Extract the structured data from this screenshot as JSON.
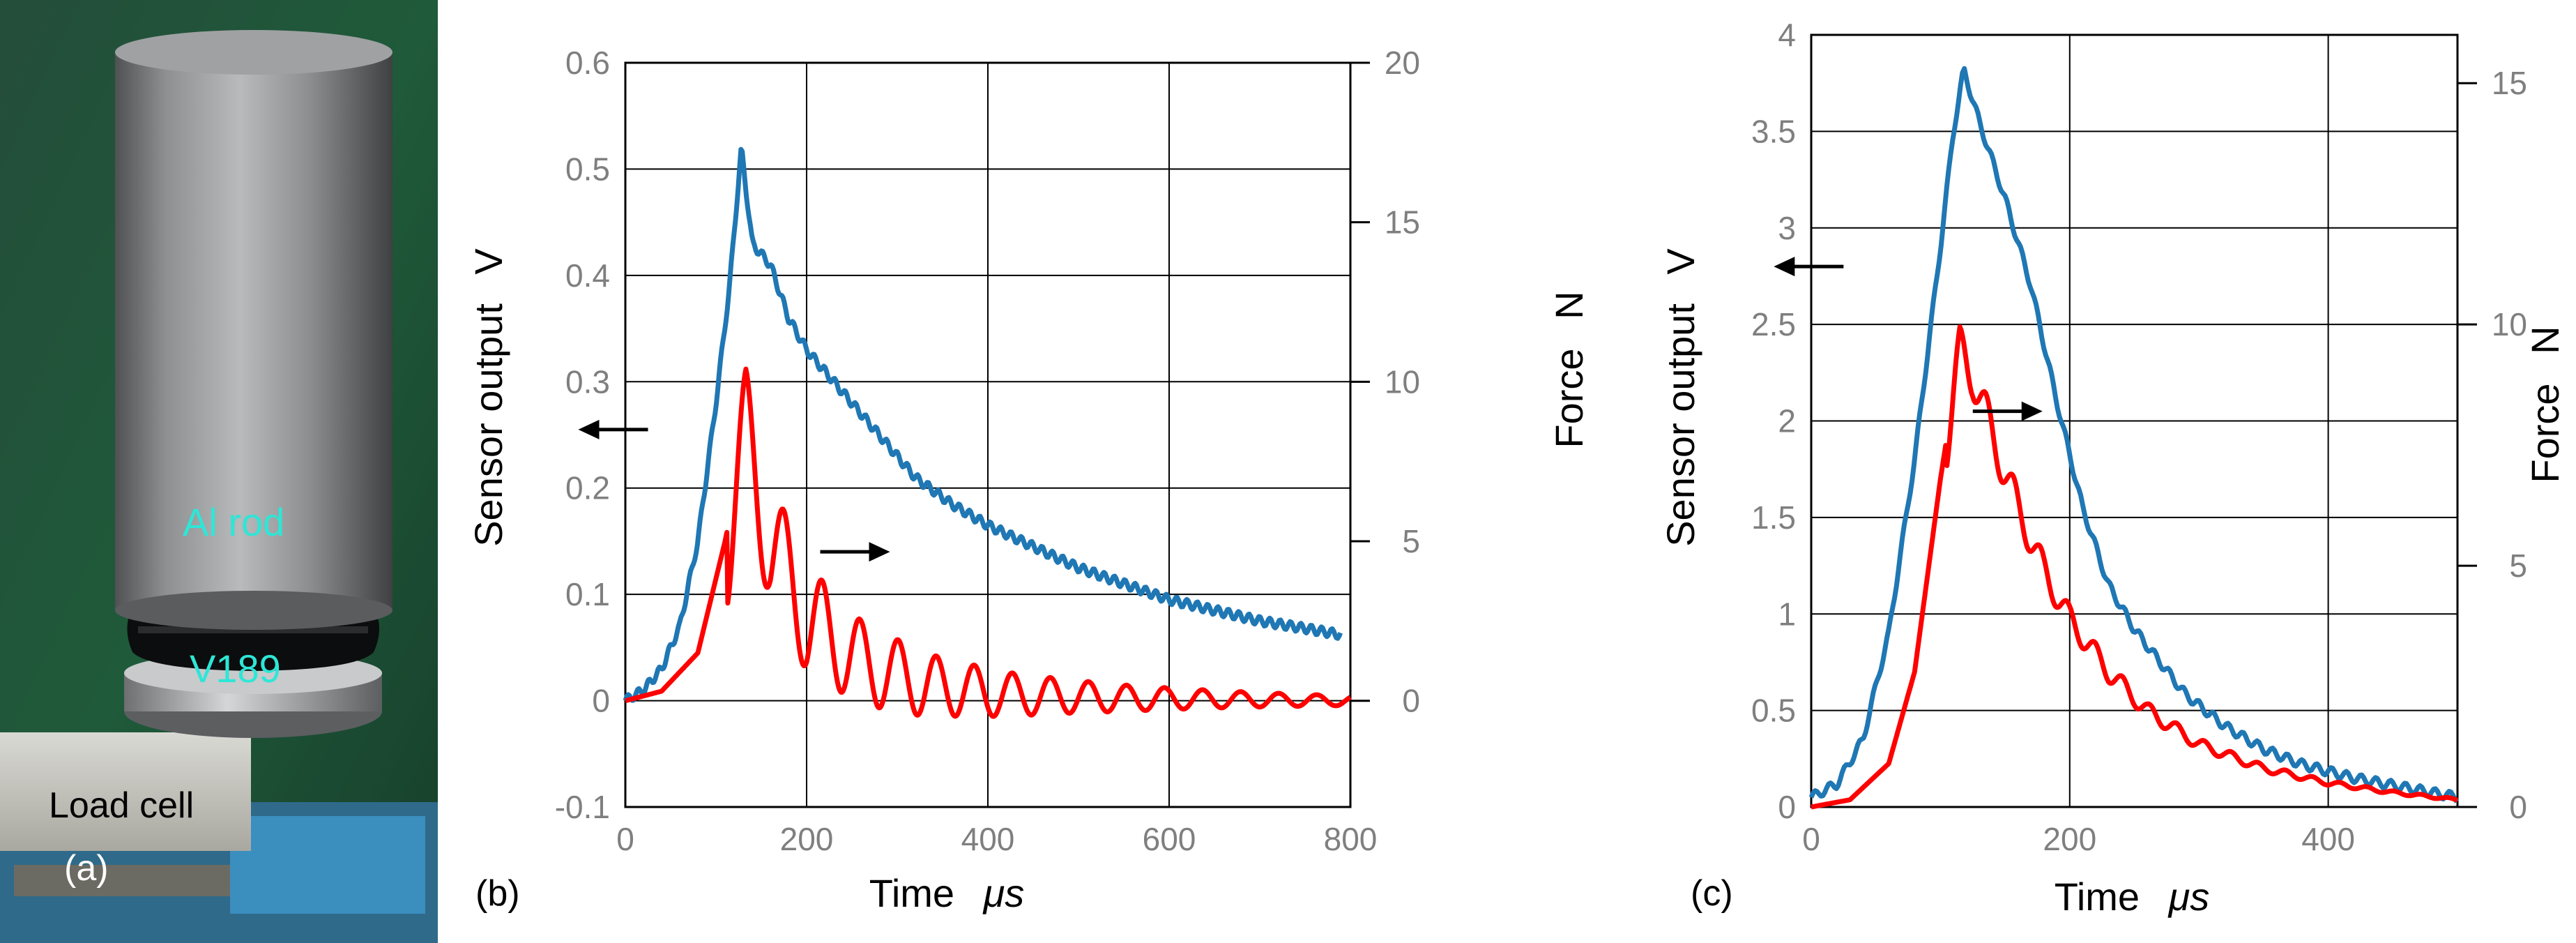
{
  "photo": {
    "panel_label": "(a)",
    "labels": {
      "rod": "Al rod",
      "sensor": "V189",
      "load_cell": "Load cell"
    },
    "colors": {
      "background": "#1f5a3a",
      "label_accent": "#2ee6d6",
      "rod": "#8a8c8e"
    }
  },
  "colors": {
    "sensor": "#1f77b4",
    "force": "#ff0000",
    "grid": "#000000",
    "tick": "#7f7f7f"
  },
  "chart_data": [
    {
      "id": "b",
      "type": "line",
      "panel_label": "(b)",
      "xlabel": "Time",
      "xlabel_unit": "μs",
      "ylabel": "Sensor output",
      "ylabel_unit": "V",
      "y2label": "Force",
      "y2label_unit": "N",
      "xlim": [
        0,
        800
      ],
      "ylim": [
        -0.1,
        0.6
      ],
      "y2lim": [
        -3.33,
        20
      ],
      "xticks": [
        0,
        200,
        400,
        600,
        800
      ],
      "yticks": [
        -0.1,
        0,
        0.1,
        0.2,
        0.3,
        0.4,
        0.5,
        0.6
      ],
      "y2ticks": [
        0,
        5,
        10,
        15,
        20
      ],
      "grid": true,
      "arrows": [
        {
          "series": "Sensor output",
          "direction": "left",
          "x": 25,
          "y": 0.255
        },
        {
          "series": "Force",
          "direction": "right",
          "x": 215,
          "y": 0.14
        }
      ],
      "series": [
        {
          "name": "Sensor output",
          "axis": "left",
          "x": [
            0,
            20,
            40,
            60,
            80,
            100,
            115,
            128,
            140,
            160,
            180,
            200,
            240,
            280,
            320,
            360,
            400,
            450,
            500,
            550,
            600,
            650,
            700,
            750,
            790
          ],
          "y": [
            0,
            0.01,
            0.03,
            0.07,
            0.15,
            0.28,
            0.39,
            0.52,
            0.43,
            0.41,
            0.36,
            0.33,
            0.29,
            0.25,
            0.21,
            0.185,
            0.165,
            0.145,
            0.125,
            0.11,
            0.095,
            0.085,
            0.075,
            0.068,
            0.062
          ]
        },
        {
          "name": "Force",
          "axis": "right",
          "model": {
            "baseline": [
              [
                0,
                0
              ],
              [
                40,
                0.3
              ],
              [
                80,
                1.5
              ],
              [
                110,
                5.0
              ],
              [
                133,
                8.2
              ],
              [
                160,
                5.0
              ],
              [
                200,
                2.6
              ],
              [
                260,
                1.2
              ],
              [
                330,
                0.5
              ],
              [
                420,
                0.2
              ],
              [
                550,
                0.08
              ],
              [
                800,
                0
              ]
            ],
            "oscillation": {
              "period_us": 42,
              "peak_us": 133,
              "amplitude": 2.2,
              "decay_us": 250
            }
          }
        }
      ]
    },
    {
      "id": "c",
      "type": "line",
      "panel_label": "(c)",
      "xlabel": "Time",
      "xlabel_unit": "μs",
      "ylabel": "Sensor output",
      "ylabel_unit": "V",
      "y2label": "Force",
      "y2label_unit": "N",
      "xlim": [
        0,
        500
      ],
      "ylim": [
        0,
        4
      ],
      "y2lim": [
        0,
        16
      ],
      "xticks": [
        0,
        200,
        400
      ],
      "yticks": [
        0,
        0.5,
        1,
        1.5,
        2,
        2.5,
        3,
        3.5,
        4
      ],
      "y2ticks": [
        0,
        5,
        10,
        15
      ],
      "grid": true,
      "arrows": [
        {
          "series": "Sensor output",
          "direction": "left",
          "x": 25,
          "y": 2.8
        },
        {
          "series": "Force",
          "direction": "right",
          "x": 125,
          "y": 2.05
        }
      ],
      "series": [
        {
          "name": "Sensor output",
          "axis": "left",
          "x": [
            0,
            20,
            40,
            60,
            80,
            100,
            110,
            118,
            130,
            150,
            170,
            190,
            210,
            230,
            250,
            270,
            290,
            320,
            350,
            380,
            420,
            460,
            500
          ],
          "y": [
            0.05,
            0.12,
            0.35,
            0.9,
            1.8,
            2.9,
            3.5,
            3.82,
            3.55,
            3.15,
            2.7,
            2.1,
            1.55,
            1.15,
            0.92,
            0.75,
            0.58,
            0.42,
            0.3,
            0.22,
            0.15,
            0.1,
            0.05
          ]
        },
        {
          "name": "Force",
          "axis": "right",
          "model": {
            "baseline": [
              [
                0,
                0
              ],
              [
                30,
                0.15
              ],
              [
                60,
                0.9
              ],
              [
                80,
                2.8
              ],
              [
                100,
                6.8
              ],
              [
                115,
                9.4
              ],
              [
                125,
                9.0
              ],
              [
                140,
                7.7
              ],
              [
                160,
                6.2
              ],
              [
                180,
                4.9
              ],
              [
                200,
                3.9
              ],
              [
                230,
                2.8
              ],
              [
                260,
                2.0
              ],
              [
                300,
                1.3
              ],
              [
                350,
                0.8
              ],
              [
                400,
                0.5
              ],
              [
                450,
                0.3
              ],
              [
                500,
                0.15
              ]
            ],
            "oscillation": {
              "period_us": 21,
              "peak_us": 115,
              "amplitude": 0.55,
              "decay_us": 120
            }
          }
        }
      ]
    }
  ]
}
